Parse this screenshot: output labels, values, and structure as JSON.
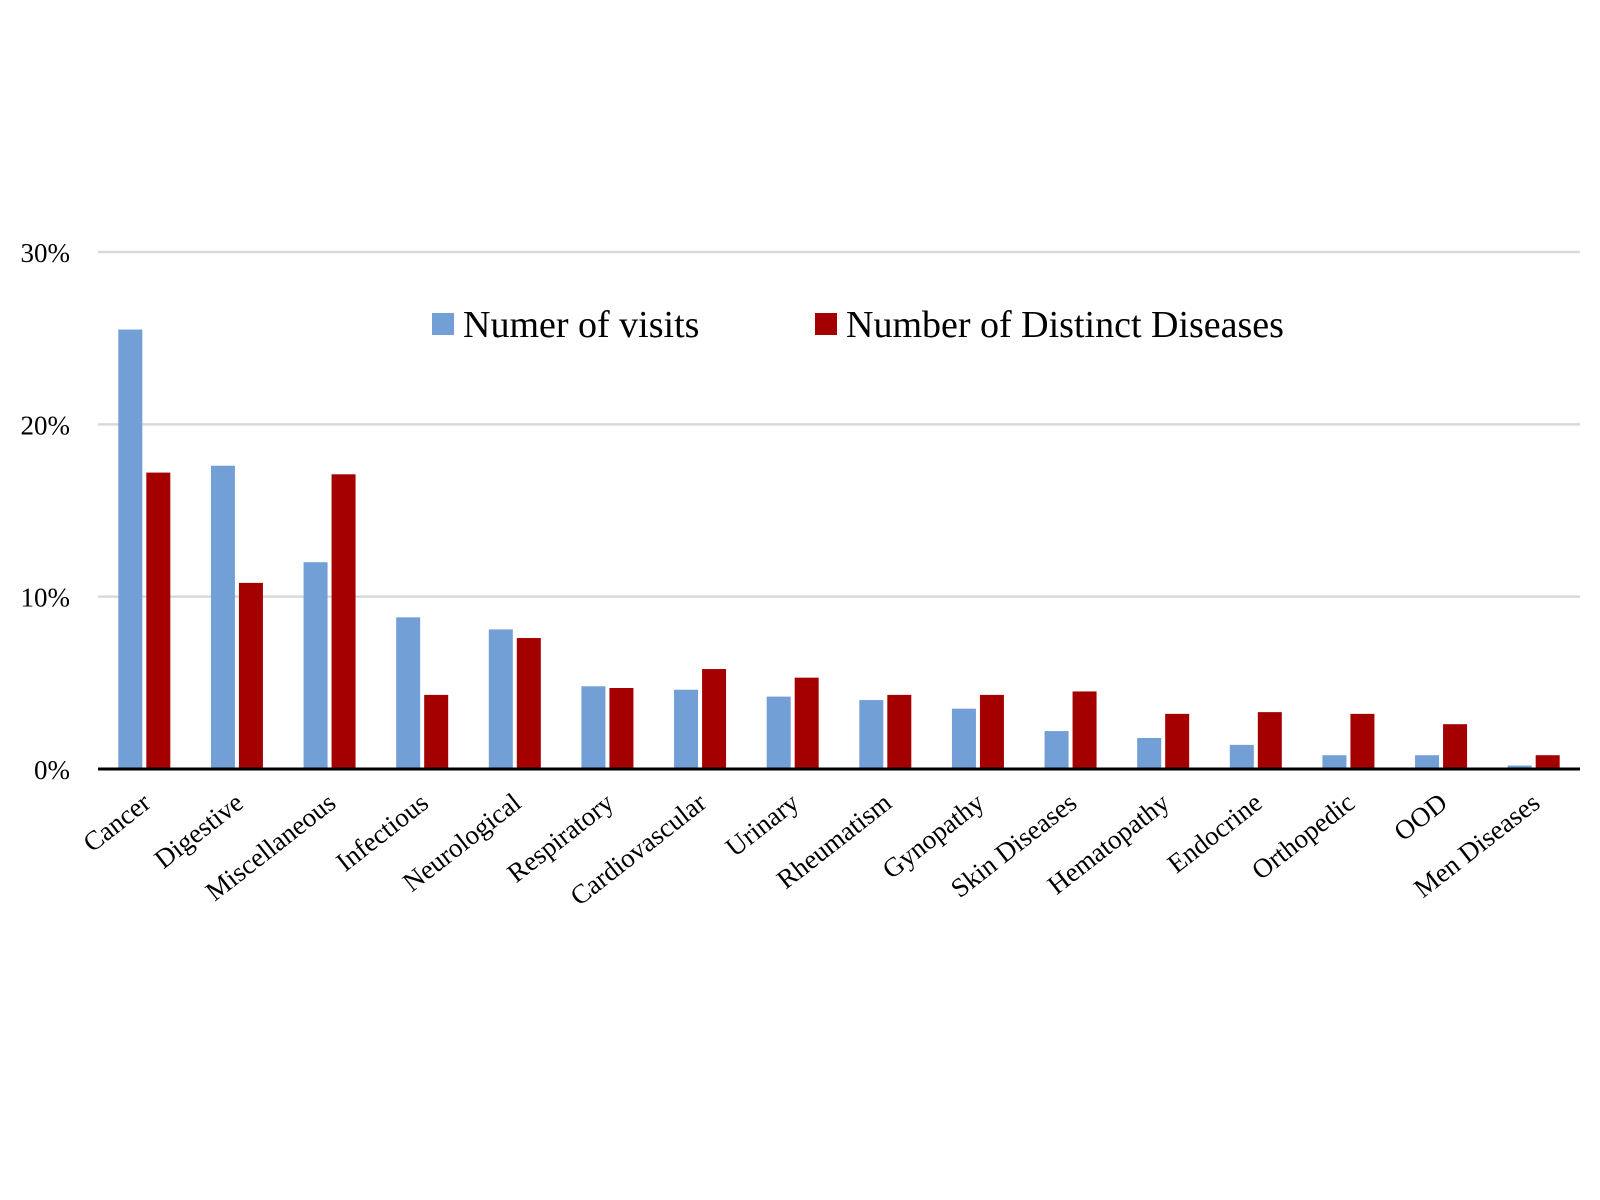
{
  "chart_data": {
    "type": "bar",
    "categories": [
      "Cancer",
      "Digestive",
      "Miscellaneous",
      "Infectious",
      "Neurological",
      "Respiratory",
      "Cardiovascular",
      "Urinary",
      "Rheumatism",
      "Gynopathy",
      "Skin Diseases",
      "Hematopathy",
      "Endocrine",
      "Orthopedic",
      "OOD",
      "Men Diseases"
    ],
    "series": [
      {
        "name": "Numer of visits",
        "color": "#729fd6",
        "values": [
          25.5,
          17.6,
          12.0,
          8.8,
          8.1,
          4.8,
          4.6,
          4.2,
          4.0,
          3.5,
          2.2,
          1.8,
          1.4,
          0.8,
          0.8,
          0.2
        ]
      },
      {
        "name": "Number of Distinct Diseases",
        "color": "#a50000",
        "values": [
          17.2,
          10.8,
          17.1,
          4.3,
          7.6,
          4.7,
          5.8,
          5.3,
          4.3,
          4.3,
          4.5,
          3.2,
          3.3,
          3.2,
          2.6,
          0.8
        ]
      }
    ],
    "yticks": [
      "0%",
      "10%",
      "20%",
      "30%"
    ],
    "ylim": [
      0,
      30
    ],
    "xlabel": "",
    "ylabel": "",
    "grid": true,
    "legend_position": "top-center"
  }
}
